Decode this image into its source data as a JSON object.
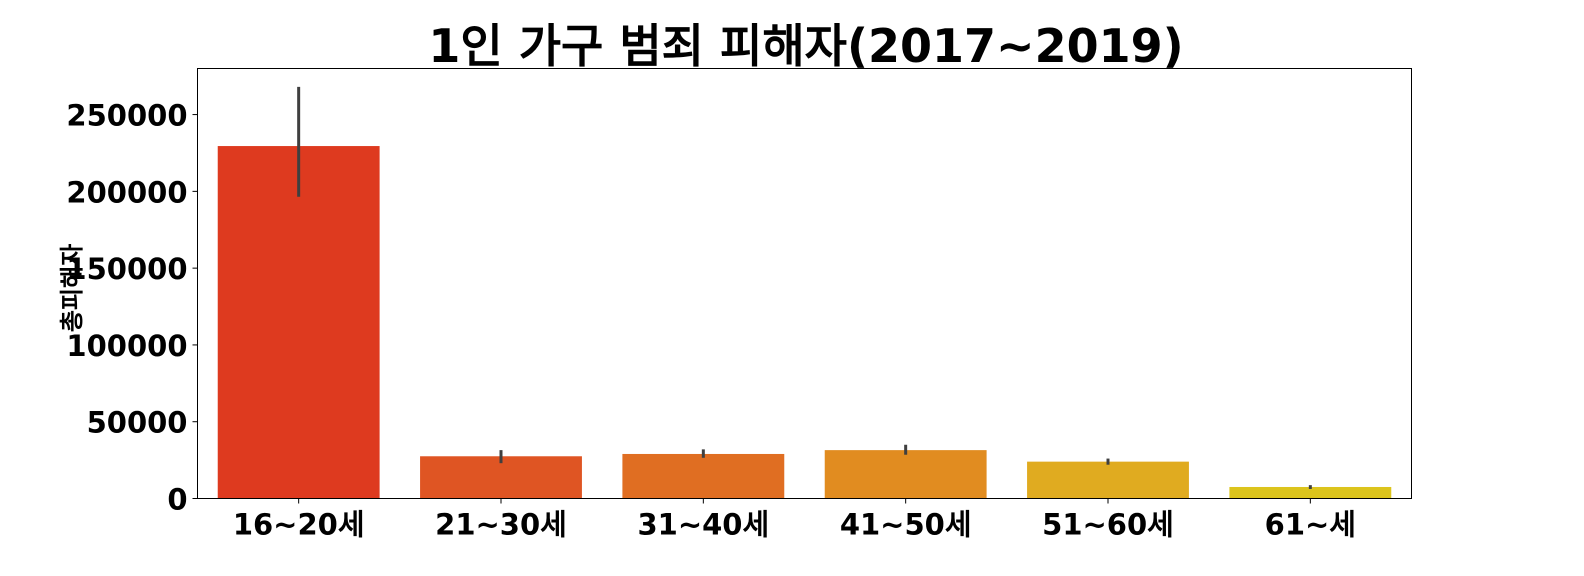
{
  "chart_data": {
    "type": "bar",
    "title": "1인 가구 범죄 피해자(2017~2019)",
    "xlabel": "",
    "ylabel": "총피해자",
    "categories": [
      "16~20세",
      "21~30세",
      "31~40세",
      "41~50세",
      "51~60세",
      "61~세"
    ],
    "values": [
      229500,
      27500,
      29000,
      31500,
      24000,
      7500
    ],
    "error_low": [
      196500,
      23000,
      26500,
      28500,
      22000,
      6200
    ],
    "error_high": [
      268000,
      31500,
      32000,
      35000,
      26000,
      8700
    ],
    "colors": [
      "#DE3A1F",
      "#DF5523",
      "#E06E22",
      "#E18C20",
      "#E0AB20",
      "#DCC41C"
    ],
    "ylim": [
      0,
      280000
    ],
    "yticks": [
      0,
      50000,
      100000,
      150000,
      200000,
      250000
    ],
    "ytick_labels": [
      "0",
      "50000",
      "100000",
      "150000",
      "200000",
      "250000"
    ],
    "grid": false,
    "legend": "none"
  }
}
